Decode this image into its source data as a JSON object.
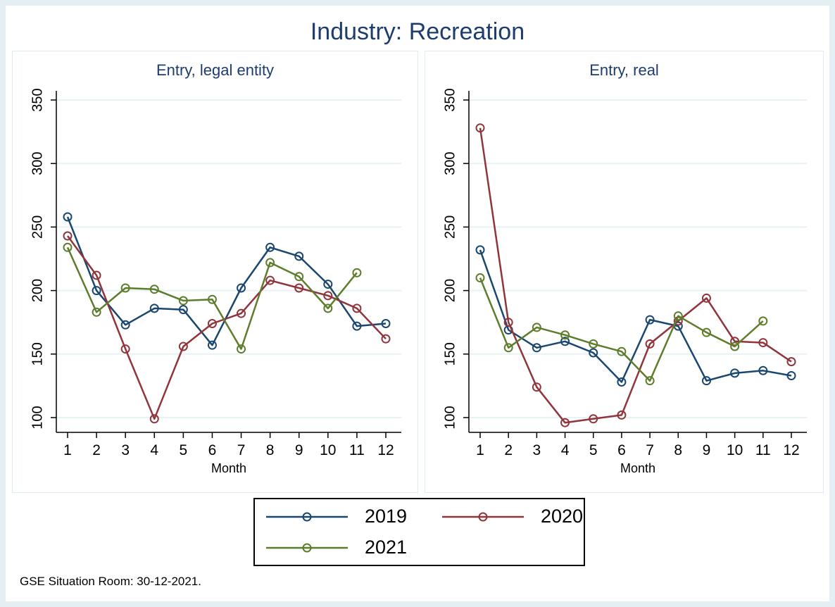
{
  "title": "Industry: Recreation",
  "footer": "GSE Situation Room: 30-12-2021.",
  "colors": {
    "2019": "#1a476f",
    "2020": "#90353b",
    "2021": "#5e7d2c",
    "title_navy": "#1e3d6e",
    "frame": "#e3eff2",
    "grid": "#e8f2f4",
    "axis": "#000000"
  },
  "legend": {
    "position": "bottom",
    "items": [
      {
        "label": "2019",
        "color": "#1a476f"
      },
      {
        "label": "2020",
        "color": "#90353b"
      },
      {
        "label": "2021",
        "color": "#5e7d2c"
      }
    ]
  },
  "chart_data": [
    {
      "type": "line",
      "title": "Entry, legal entity",
      "xlabel": "Month",
      "x": [
        1,
        2,
        3,
        4,
        5,
        6,
        7,
        8,
        9,
        10,
        11,
        12
      ],
      "yticks": [
        100,
        150,
        200,
        250,
        300,
        350
      ],
      "ylim": [
        88,
        358
      ],
      "grid": true,
      "marker": "open-circle",
      "series": [
        {
          "name": "2019",
          "values": [
            258,
            200,
            173,
            186,
            185,
            157,
            202,
            234,
            227,
            205,
            172,
            174
          ]
        },
        {
          "name": "2020",
          "values": [
            243,
            212,
            154,
            99,
            156,
            174,
            182,
            208,
            202,
            196,
            186,
            162
          ]
        },
        {
          "name": "2021",
          "values": [
            234,
            183,
            202,
            201,
            192,
            193,
            154,
            222,
            211,
            186,
            214,
            null
          ]
        }
      ]
    },
    {
      "type": "line",
      "title": "Entry, real",
      "xlabel": "Month",
      "x": [
        1,
        2,
        3,
        4,
        5,
        6,
        7,
        8,
        9,
        10,
        11,
        12
      ],
      "yticks": [
        100,
        150,
        200,
        250,
        300,
        350
      ],
      "ylim": [
        88,
        358
      ],
      "grid": true,
      "marker": "open-circle",
      "series": [
        {
          "name": "2019",
          "values": [
            232,
            169,
            155,
            160,
            151,
            128,
            177,
            172,
            129,
            135,
            137,
            133
          ]
        },
        {
          "name": "2020",
          "values": [
            328,
            175,
            124,
            96,
            99,
            102,
            158,
            176,
            194,
            160,
            159,
            144
          ]
        },
        {
          "name": "2021",
          "values": [
            210,
            155,
            171,
            165,
            158,
            152,
            129,
            180,
            167,
            156,
            176,
            null
          ]
        }
      ]
    }
  ]
}
